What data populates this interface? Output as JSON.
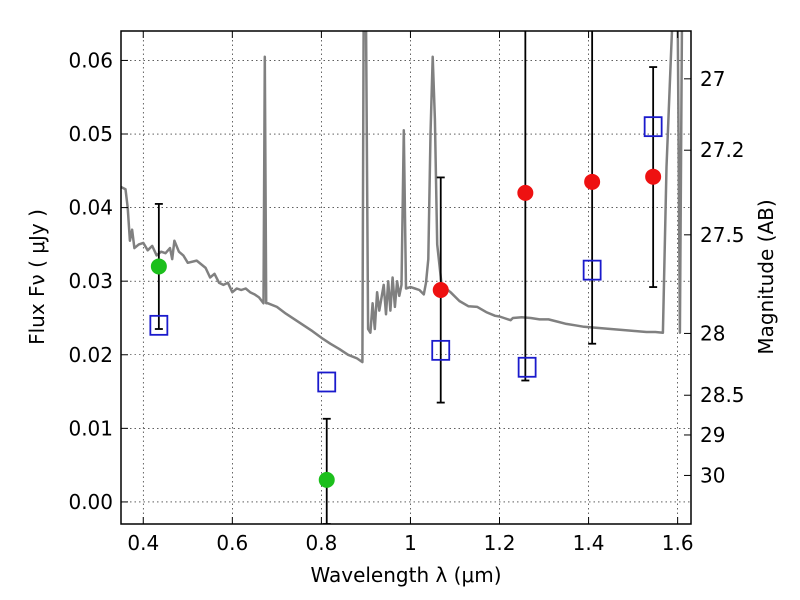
{
  "chart_data": {
    "type": "scatter",
    "xlabel": "Wavelength  λ (μm)",
    "ylabel": "Flux  Fν  ( μJy )",
    "y2label": "Magnitude (AB)",
    "xlim": [
      0.35,
      1.63
    ],
    "ylim": [
      -0.003,
      0.064
    ],
    "grid": true,
    "x_ticks": [
      {
        "value": 0.4,
        "label": "0.4"
      },
      {
        "value": 0.6,
        "label": "0.6"
      },
      {
        "value": 0.8,
        "label": "0.8"
      },
      {
        "value": 1.0,
        "label": "1"
      },
      {
        "value": 1.2,
        "label": "1.2"
      },
      {
        "value": 1.4,
        "label": "1.4"
      },
      {
        "value": 1.6,
        "label": "1.6"
      }
    ],
    "y_ticks": [
      {
        "value": 0.0,
        "label": "0.00"
      },
      {
        "value": 0.01,
        "label": "0.01"
      },
      {
        "value": 0.02,
        "label": "0.02"
      },
      {
        "value": 0.03,
        "label": "0.03"
      },
      {
        "value": 0.04,
        "label": "0.04"
      },
      {
        "value": 0.05,
        "label": "0.05"
      },
      {
        "value": 0.06,
        "label": "0.06"
      }
    ],
    "y2_ticks": [
      {
        "flux": 0.0575,
        "label": "27"
      },
      {
        "flux": 0.0478,
        "label": "27.2"
      },
      {
        "flux": 0.0363,
        "label": "27.5"
      },
      {
        "flux": 0.0229,
        "label": "28"
      },
      {
        "flux": 0.0145,
        "label": "28.5"
      },
      {
        "flux": 0.0091,
        "label": "29"
      },
      {
        "flux": 0.0036,
        "label": "30"
      }
    ],
    "series": [
      {
        "type": "line",
        "color": "#808080",
        "points": [
          [
            0.35,
            0.0428
          ],
          [
            0.36,
            0.0425
          ],
          [
            0.365,
            0.04
          ],
          [
            0.37,
            0.0355
          ],
          [
            0.375,
            0.037
          ],
          [
            0.38,
            0.0345
          ],
          [
            0.39,
            0.035
          ],
          [
            0.4,
            0.0352
          ],
          [
            0.41,
            0.0342
          ],
          [
            0.42,
            0.0348
          ],
          [
            0.43,
            0.0335
          ],
          [
            0.44,
            0.034
          ],
          [
            0.45,
            0.0338
          ],
          [
            0.46,
            0.0345
          ],
          [
            0.465,
            0.033
          ],
          [
            0.47,
            0.0355
          ],
          [
            0.48,
            0.034
          ],
          [
            0.49,
            0.0335
          ],
          [
            0.5,
            0.0325
          ],
          [
            0.52,
            0.0328
          ],
          [
            0.54,
            0.0318
          ],
          [
            0.55,
            0.0305
          ],
          [
            0.56,
            0.031
          ],
          [
            0.57,
            0.0298
          ],
          [
            0.58,
            0.0295
          ],
          [
            0.59,
            0.0298
          ],
          [
            0.6,
            0.0285
          ],
          [
            0.61,
            0.029
          ],
          [
            0.62,
            0.0288
          ],
          [
            0.63,
            0.029
          ],
          [
            0.64,
            0.0285
          ],
          [
            0.65,
            0.0282
          ],
          [
            0.66,
            0.0278
          ],
          [
            0.67,
            0.027
          ],
          [
            0.673,
            0.0605
          ],
          [
            0.676,
            0.027
          ],
          [
            0.68,
            0.027
          ],
          [
            0.7,
            0.0265
          ],
          [
            0.72,
            0.0256
          ],
          [
            0.74,
            0.0248
          ],
          [
            0.76,
            0.024
          ],
          [
            0.78,
            0.0232
          ],
          [
            0.8,
            0.0223
          ],
          [
            0.82,
            0.0215
          ],
          [
            0.84,
            0.0208
          ],
          [
            0.86,
            0.02
          ],
          [
            0.88,
            0.0195
          ],
          [
            0.892,
            0.019
          ],
          [
            0.895,
            0.068
          ],
          [
            0.9,
            0.068
          ],
          [
            0.905,
            0.0235
          ],
          [
            0.91,
            0.023
          ],
          [
            0.915,
            0.027
          ],
          [
            0.92,
            0.0235
          ],
          [
            0.925,
            0.0285
          ],
          [
            0.93,
            0.026
          ],
          [
            0.94,
            0.0295
          ],
          [
            0.945,
            0.0255
          ],
          [
            0.95,
            0.03
          ],
          [
            0.955,
            0.026
          ],
          [
            0.96,
            0.0305
          ],
          [
            0.965,
            0.0265
          ],
          [
            0.97,
            0.03
          ],
          [
            0.975,
            0.028
          ],
          [
            0.98,
            0.0295
          ],
          [
            0.985,
            0.0505
          ],
          [
            0.99,
            0.029
          ],
          [
            1.0,
            0.0292
          ],
          [
            1.01,
            0.029
          ],
          [
            1.02,
            0.0288
          ],
          [
            1.03,
            0.0282
          ],
          [
            1.035,
            0.0298
          ],
          [
            1.04,
            0.033
          ],
          [
            1.045,
            0.05
          ],
          [
            1.05,
            0.0605
          ],
          [
            1.055,
            0.052
          ],
          [
            1.06,
            0.035
          ],
          [
            1.07,
            0.0295
          ],
          [
            1.09,
            0.0285
          ],
          [
            1.11,
            0.0273
          ],
          [
            1.13,
            0.0266
          ],
          [
            1.15,
            0.0265
          ],
          [
            1.17,
            0.0258
          ],
          [
            1.19,
            0.0253
          ],
          [
            1.2,
            0.0252
          ],
          [
            1.21,
            0.025
          ],
          [
            1.225,
            0.0247
          ],
          [
            1.23,
            0.025
          ],
          [
            1.25,
            0.0251
          ],
          [
            1.27,
            0.025
          ],
          [
            1.29,
            0.0248
          ],
          [
            1.31,
            0.0248
          ],
          [
            1.33,
            0.0245
          ],
          [
            1.35,
            0.0242
          ],
          [
            1.37,
            0.024
          ],
          [
            1.39,
            0.0238
          ],
          [
            1.41,
            0.0237
          ],
          [
            1.43,
            0.0236
          ],
          [
            1.45,
            0.0235
          ],
          [
            1.47,
            0.0234
          ],
          [
            1.49,
            0.0233
          ],
          [
            1.51,
            0.0232
          ],
          [
            1.53,
            0.0231
          ],
          [
            1.55,
            0.0231
          ],
          [
            1.567,
            0.023
          ],
          [
            1.575,
            0.0455
          ],
          [
            1.585,
            0.0608
          ],
          [
            1.59,
            0.068
          ],
          [
            1.6,
            0.068
          ],
          [
            1.605,
            0.023
          ],
          [
            1.61,
            0.068
          ],
          [
            1.62,
            0.068
          ]
        ]
      },
      {
        "type": "scatter",
        "marker": "circle",
        "color": "#1cbf1c",
        "points": [
          {
            "x": 0.435,
            "y": 0.032,
            "yerr_low": 0.0235,
            "yerr_high": 0.0405
          },
          {
            "x": 0.812,
            "y": 0.003,
            "yerr_low": -0.003,
            "yerr_high": 0.0113
          }
        ]
      },
      {
        "type": "scatter",
        "marker": "circle",
        "color": "#ee1111",
        "points": [
          {
            "x": 1.068,
            "y": 0.0288,
            "yerr_low": 0.0135,
            "yerr_high": 0.0441
          },
          {
            "x": 1.258,
            "y": 0.042,
            "yerr_low": 0.0165,
            "yerr_high": 0.068
          },
          {
            "x": 1.408,
            "y": 0.0435,
            "yerr_low": 0.0215,
            "yerr_high": 0.068
          },
          {
            "x": 1.545,
            "y": 0.0442,
            "yerr_low": 0.0292,
            "yerr_high": 0.0591
          }
        ]
      },
      {
        "type": "scatter",
        "marker": "square",
        "color": "#1a1acc",
        "points": [
          {
            "x": 0.435,
            "y": 0.024
          },
          {
            "x": 0.812,
            "y": 0.0163
          },
          {
            "x": 1.068,
            "y": 0.0206
          },
          {
            "x": 1.262,
            "y": 0.0183
          },
          {
            "x": 1.408,
            "y": 0.0315
          },
          {
            "x": 1.545,
            "y": 0.051
          }
        ]
      }
    ]
  }
}
